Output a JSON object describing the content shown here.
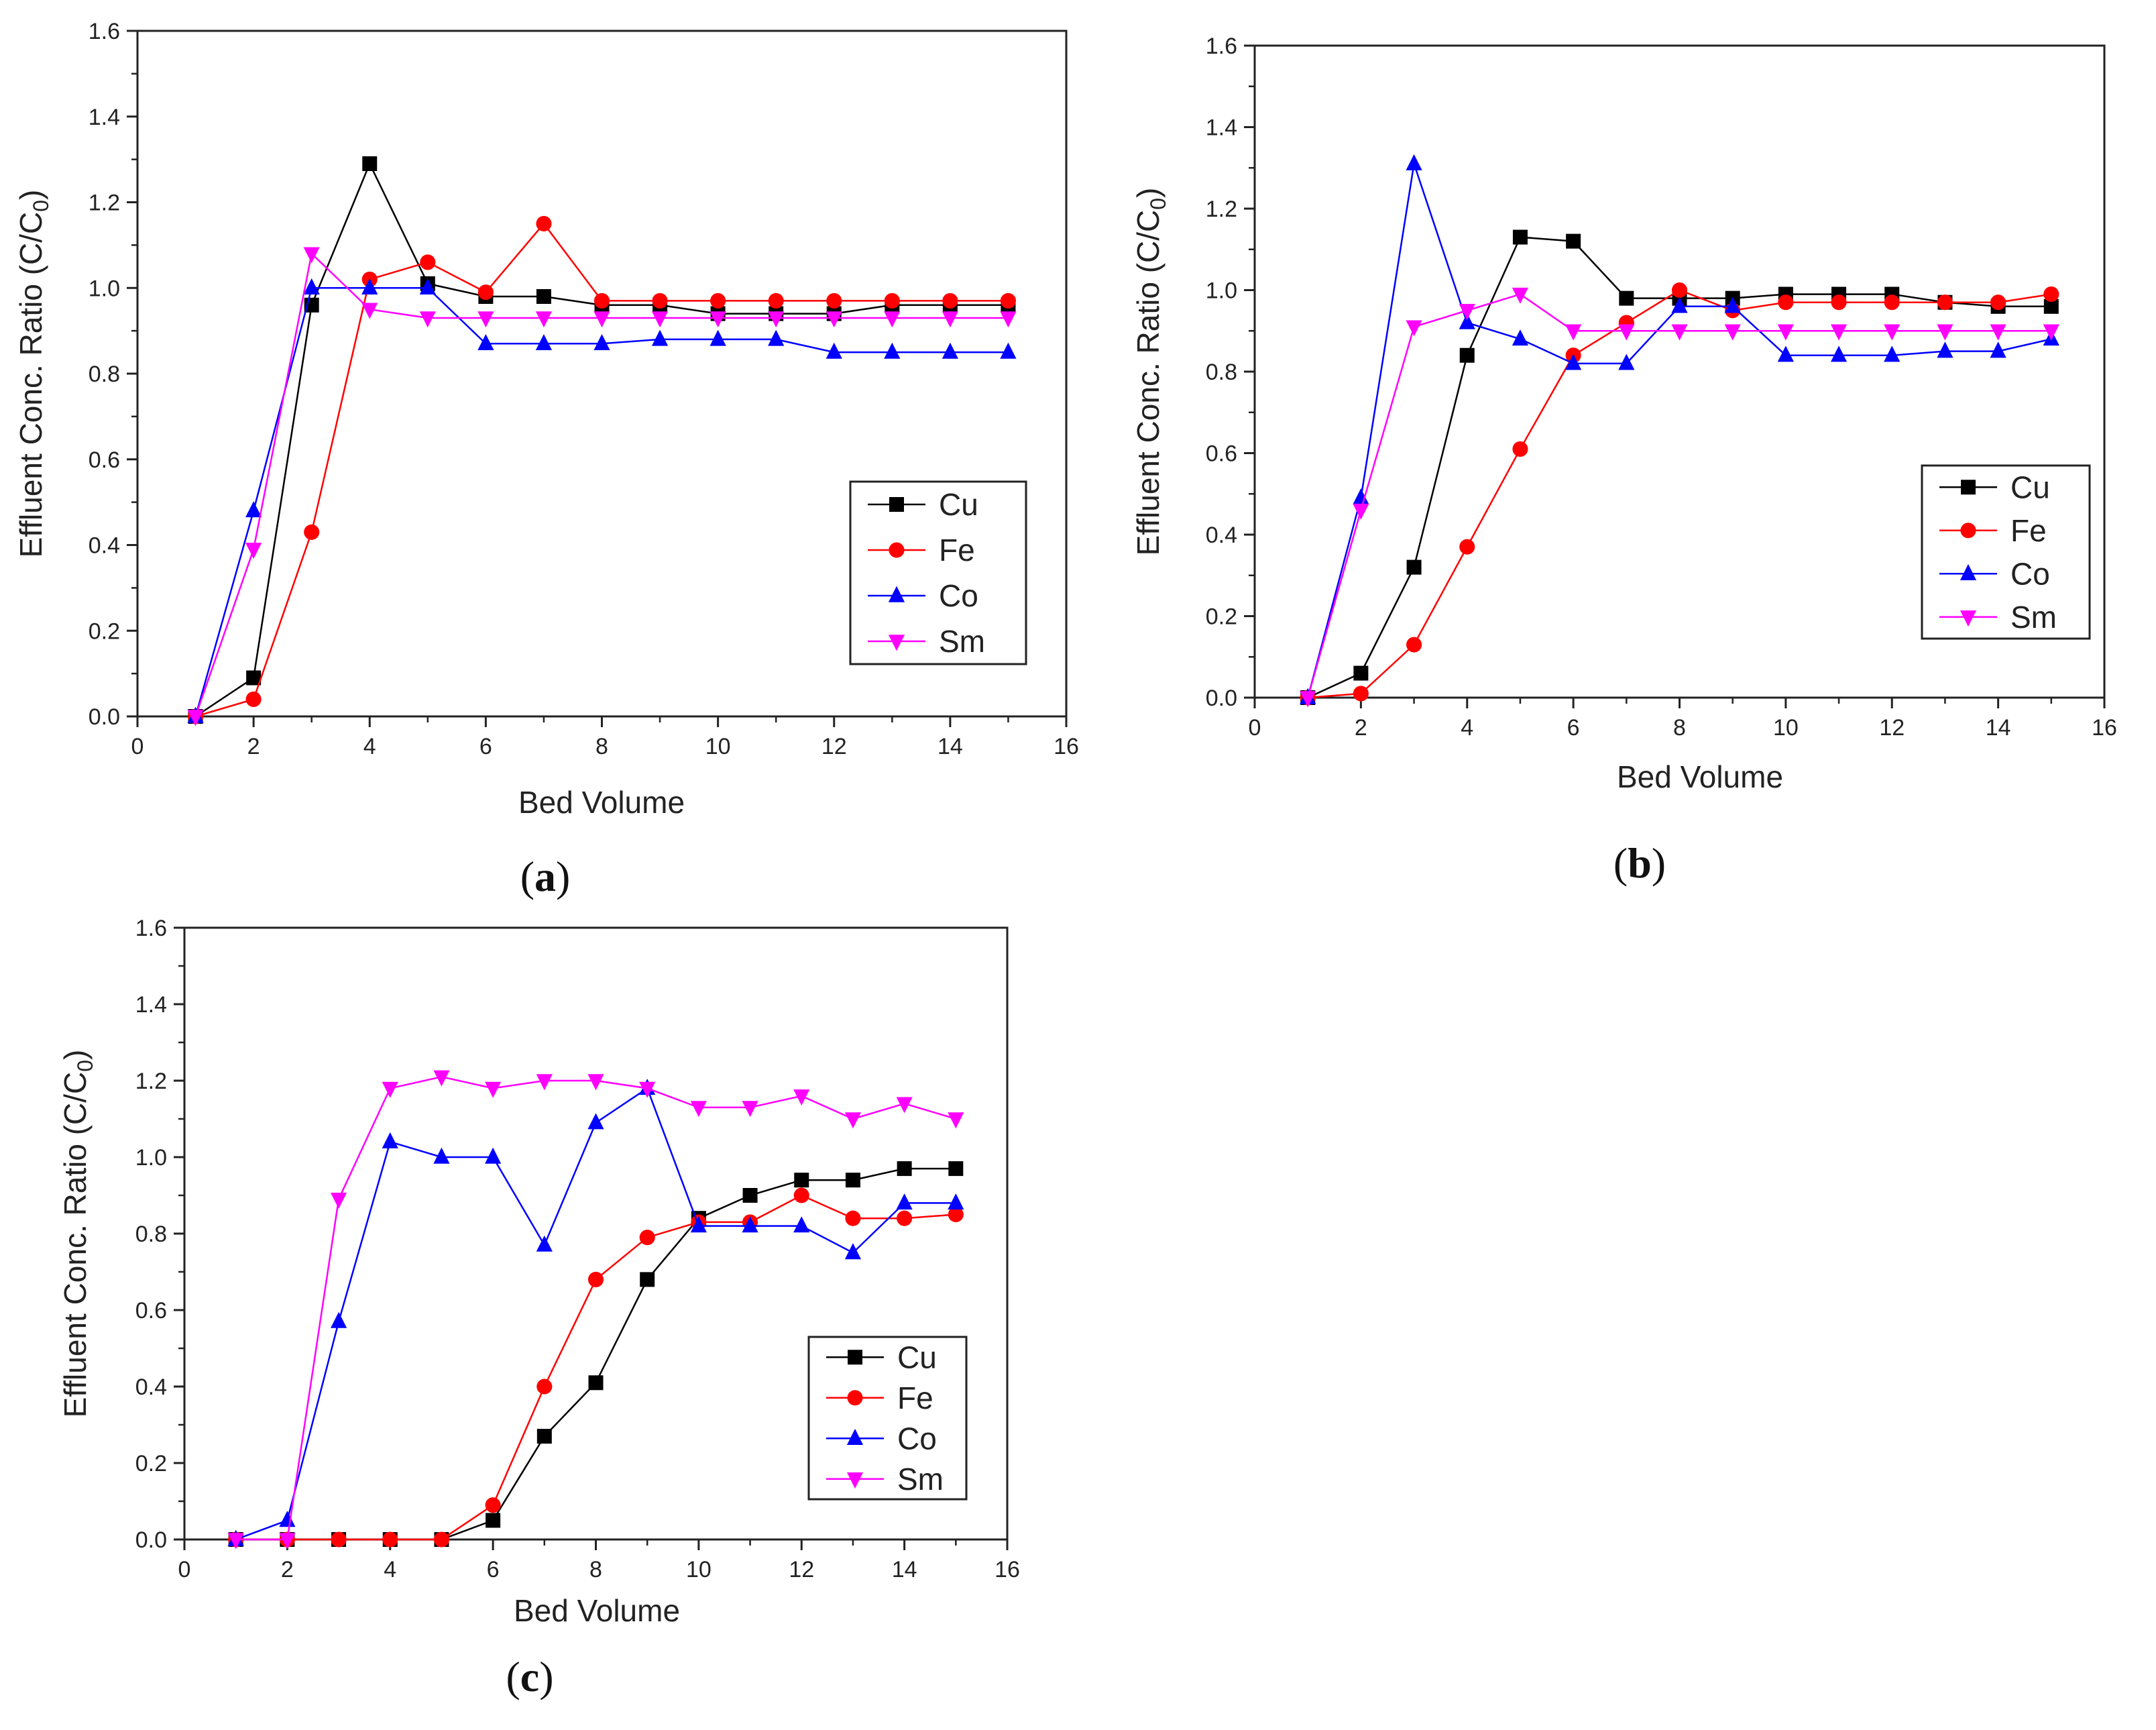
{
  "chart_data": [
    {
      "type": "line",
      "panel_label": "(a)",
      "xlabel": "Bed Volume",
      "ylabel": "Effluent Conc. Ratio (C/C",
      "ylabel_sub": "0",
      "ylabel_close": ")",
      "xlim": [
        0,
        16
      ],
      "ylim": [
        0,
        1.6
      ],
      "xticks": [
        "0",
        "2",
        "4",
        "6",
        "8",
        "10",
        "12",
        "14",
        "16"
      ],
      "yticks": [
        "0.0",
        "0.2",
        "0.4",
        "0.6",
        "0.8",
        "1.0",
        "1.2",
        "1.4",
        "1.6"
      ],
      "legend_position": "lower-right",
      "x": [
        1,
        2,
        3,
        4,
        5,
        6,
        7,
        8,
        9,
        10,
        11,
        12,
        13,
        14,
        15
      ],
      "series": [
        {
          "name": "Cu",
          "color": "#000000",
          "marker": "square",
          "values": [
            0,
            0.09,
            0.96,
            1.29,
            1.01,
            0.98,
            0.98,
            0.96,
            0.96,
            0.94,
            0.94,
            0.94,
            0.96,
            0.96,
            0.96
          ]
        },
        {
          "name": "Fe",
          "color": "#ff0000",
          "marker": "circle",
          "values": [
            0,
            0.04,
            0.43,
            1.02,
            1.06,
            0.99,
            1.15,
            0.97,
            0.97,
            0.97,
            0.97,
            0.97,
            0.97,
            0.97,
            0.97
          ]
        },
        {
          "name": "Co",
          "color": "#0000ff",
          "marker": "triangle-up",
          "values": [
            0,
            0.48,
            1.0,
            1.0,
            1.0,
            0.87,
            0.87,
            0.87,
            0.88,
            0.88,
            0.88,
            0.85,
            0.85,
            0.85,
            0.85
          ]
        },
        {
          "name": "Sm",
          "color": "#ff00ff",
          "marker": "triangle-down",
          "values": [
            0,
            0.39,
            1.08,
            0.95,
            0.93,
            0.93,
            0.93,
            0.93,
            0.93,
            0.93,
            0.93,
            0.93,
            0.93,
            0.93,
            0.93
          ]
        }
      ]
    },
    {
      "type": "line",
      "panel_label": "(b)",
      "xlabel": "Bed Volume",
      "ylabel": "Effluent Conc. Ratio (C/C",
      "ylabel_sub": "0",
      "ylabel_close": ")",
      "xlim": [
        0,
        16
      ],
      "ylim": [
        0,
        1.6
      ],
      "xticks": [
        "0",
        "2",
        "4",
        "6",
        "8",
        "10",
        "12",
        "14",
        "16"
      ],
      "yticks": [
        "0.0",
        "0.2",
        "0.4",
        "0.6",
        "0.8",
        "1.0",
        "1.2",
        "1.4",
        "1.6"
      ],
      "legend_position": "lower-right",
      "x": [
        1,
        2,
        3,
        4,
        5,
        6,
        7,
        8,
        9,
        10,
        11,
        12,
        13,
        14,
        15
      ],
      "series": [
        {
          "name": "Cu",
          "color": "#000000",
          "marker": "square",
          "values": [
            0,
            0.06,
            0.32,
            0.84,
            1.13,
            1.12,
            0.98,
            0.98,
            0.98,
            0.99,
            0.99,
            0.99,
            0.97,
            0.96,
            0.96
          ]
        },
        {
          "name": "Fe",
          "color": "#ff0000",
          "marker": "circle",
          "values": [
            0,
            0.01,
            0.13,
            0.37,
            0.61,
            0.84,
            0.92,
            1.0,
            0.95,
            0.97,
            0.97,
            0.97,
            0.97,
            0.97,
            0.99
          ]
        },
        {
          "name": "Co",
          "color": "#0000ff",
          "marker": "triangle-up",
          "values": [
            0,
            0.49,
            1.31,
            0.92,
            0.88,
            0.82,
            0.82,
            0.96,
            0.96,
            0.84,
            0.84,
            0.84,
            0.85,
            0.85,
            0.88
          ]
        },
        {
          "name": "Sm",
          "color": "#ff00ff",
          "marker": "triangle-down",
          "values": [
            0,
            0.46,
            0.91,
            0.95,
            0.99,
            0.9,
            0.9,
            0.9,
            0.9,
            0.9,
            0.9,
            0.9,
            0.9,
            0.9,
            0.9
          ]
        }
      ]
    },
    {
      "type": "line",
      "panel_label": "(c)",
      "xlabel": "Bed Volume",
      "ylabel": "Effluent Conc. Ratio (C/C",
      "ylabel_sub": "0",
      "ylabel_close": ")",
      "xlim": [
        0,
        16
      ],
      "ylim": [
        0,
        1.6
      ],
      "xticks": [
        "0",
        "2",
        "4",
        "6",
        "8",
        "10",
        "12",
        "14",
        "16"
      ],
      "yticks": [
        "0.0",
        "0.2",
        "0.4",
        "0.6",
        "0.8",
        "1.0",
        "1.2",
        "1.4",
        "1.6"
      ],
      "legend_position": "lower-right",
      "x": [
        1,
        2,
        3,
        4,
        5,
        6,
        7,
        8,
        9,
        10,
        11,
        12,
        13,
        14,
        15
      ],
      "series": [
        {
          "name": "Cu",
          "color": "#000000",
          "marker": "square",
          "values": [
            0,
            0,
            0,
            0,
            0,
            0.05,
            0.27,
            0.41,
            0.68,
            0.84,
            0.9,
            0.94,
            0.94,
            0.97,
            0.97
          ]
        },
        {
          "name": "Fe",
          "color": "#ff0000",
          "marker": "circle",
          "values": [
            0,
            0,
            0,
            0,
            0,
            0.09,
            0.4,
            0.68,
            0.79,
            0.83,
            0.83,
            0.9,
            0.84,
            0.84,
            0.85
          ]
        },
        {
          "name": "Co",
          "color": "#0000ff",
          "marker": "triangle-up",
          "values": [
            0,
            0.05,
            0.57,
            1.04,
            1.0,
            1.0,
            0.77,
            1.09,
            1.18,
            0.82,
            0.82,
            0.82,
            0.75,
            0.88,
            0.88
          ]
        },
        {
          "name": "Sm",
          "color": "#ff00ff",
          "marker": "triangle-down",
          "values": [
            0,
            0,
            0.89,
            1.18,
            1.21,
            1.18,
            1.2,
            1.2,
            1.18,
            1.13,
            1.13,
            1.16,
            1.1,
            1.14,
            1.1
          ]
        }
      ]
    }
  ]
}
